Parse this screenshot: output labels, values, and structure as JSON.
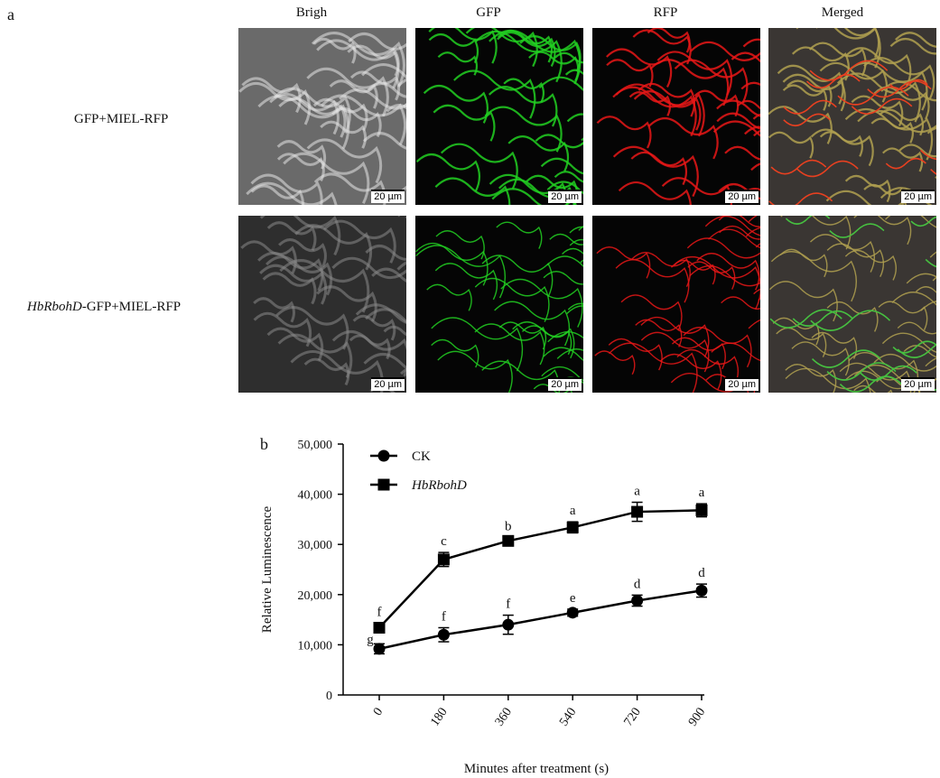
{
  "panel_a": {
    "letter": "a",
    "column_headers": [
      "Brigh",
      "GFP",
      "RFP",
      "Merged"
    ],
    "rows": [
      {
        "label_italic": "",
        "label_plain": "GFP+MIEL-RFP"
      },
      {
        "label_italic": "HbRbohD",
        "label_plain": "-GFP+MIEL-RFP"
      }
    ],
    "scale_bar": "20 µm",
    "channel_colors": {
      "brigh": "#9a9a9a",
      "gfp": "#22d022",
      "rfp": "#e81818",
      "merged": "#b0a050"
    }
  },
  "panel_b": {
    "letter": "b"
  },
  "chart_data": {
    "type": "line",
    "xlabel": "Minutes after treatment (s)",
    "ylabel": "Relative Luminescence",
    "x": [
      0,
      180,
      360,
      540,
      720,
      900
    ],
    "x_ticks": [
      "0",
      "180",
      "360",
      "540",
      "720",
      "900"
    ],
    "ylim": [
      0,
      50000
    ],
    "y_ticks": [
      "0",
      "10,000",
      "20,000",
      "30,000",
      "40,000",
      "50,000"
    ],
    "legend_position": "top-left",
    "grid": false,
    "series": [
      {
        "name": "CK",
        "italic": false,
        "marker": "circle",
        "values": [
          9200,
          12000,
          14000,
          16400,
          18800,
          20800
        ],
        "errors": [
          1000,
          1400,
          1900,
          700,
          1100,
          1300
        ],
        "letters": [
          "g",
          "f",
          "f",
          "e",
          "d",
          "d"
        ]
      },
      {
        "name": "HbRbohD",
        "italic": true,
        "marker": "square",
        "values": [
          13400,
          27000,
          30700,
          33400,
          36500,
          36800
        ],
        "errors": [
          900,
          1400,
          700,
          1100,
          1900,
          1300
        ],
        "letters": [
          "f",
          "c",
          "b",
          "a",
          "a",
          "a"
        ]
      }
    ]
  }
}
